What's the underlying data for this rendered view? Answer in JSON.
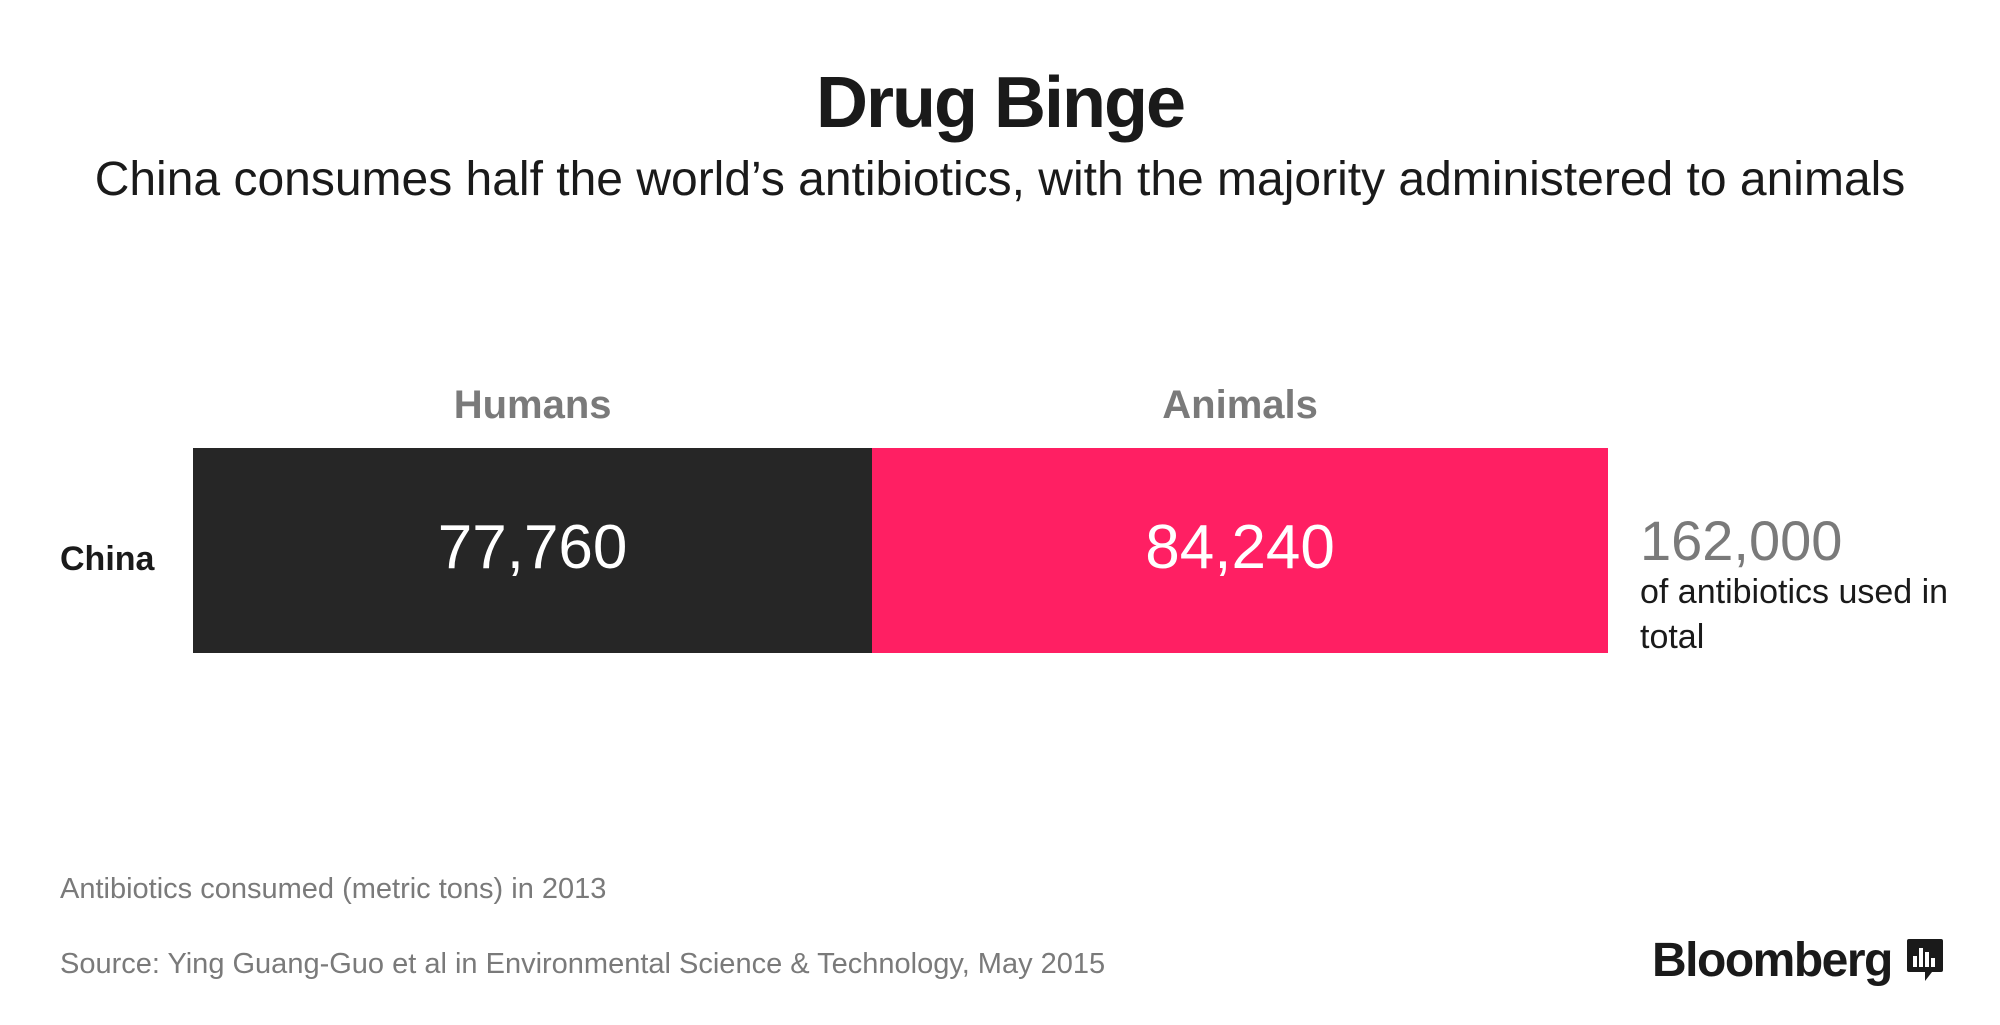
{
  "header": {
    "title": "Drug Binge",
    "subtitle": "China consumes half the world’s antibiotics, with the majority administered to animals"
  },
  "chart_data": {
    "type": "bar",
    "orientation": "horizontal",
    "stacked": true,
    "categories": [
      "China"
    ],
    "series": [
      {
        "name": "Humans",
        "values": [
          77760
        ],
        "color": "#262626",
        "label": "77,760"
      },
      {
        "name": "Animals",
        "values": [
          84240
        ],
        "color": "#ff1f63",
        "label": "84,240"
      }
    ],
    "total": {
      "value": 162000,
      "label": "162,000",
      "caption": "of antibiotics used in total"
    },
    "xlim": [
      0,
      162000
    ],
    "grid": false,
    "legend": "segment labels above bar"
  },
  "footer": {
    "note": "Antibiotics consumed (metric tons) in 2013",
    "source": "Source: Ying Guang-Guo et al in Environmental Science & Technology, May 2015",
    "logo_text": "Bloomberg",
    "logo_icon": "bloomberg-chart-icon"
  },
  "colors": {
    "text": "#1a1a1a",
    "muted": "#7a7a7a",
    "humans": "#262626",
    "animals": "#ff1f63"
  }
}
